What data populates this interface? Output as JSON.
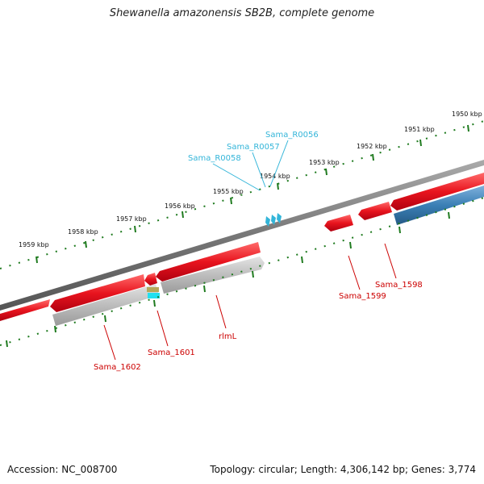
{
  "title": "Shewanella amazonensis SB2B, complete genome",
  "footer": {
    "accession": "Accession: NC_008700",
    "summary": "Topology: circular; Length: 4,306,142 bp; Genes: 3,774"
  },
  "colors": {
    "forward_gene": "#e8141e",
    "reverse_gene": "#bdbdbd",
    "rrna": "#3a7fb5",
    "trna": "#33b5d9",
    "tick": "#1e7a1e",
    "backbone": "#777777"
  },
  "tick_labels": [
    "1959 kbp",
    "1958 kbp",
    "1957 kbp",
    "1956 kbp",
    "1955 kbp",
    "1954 kbp",
    "1953 kbp",
    "1952 kbp",
    "1951 kbp",
    "1950 kbp"
  ],
  "gene_labels": [
    "Sama_1602",
    "Sama_1601",
    "rlmL",
    "Sama_1599",
    "Sama_1598"
  ],
  "rna_labels": [
    "Sama_R0058",
    "Sama_R0057",
    "Sama_R0056"
  ]
}
